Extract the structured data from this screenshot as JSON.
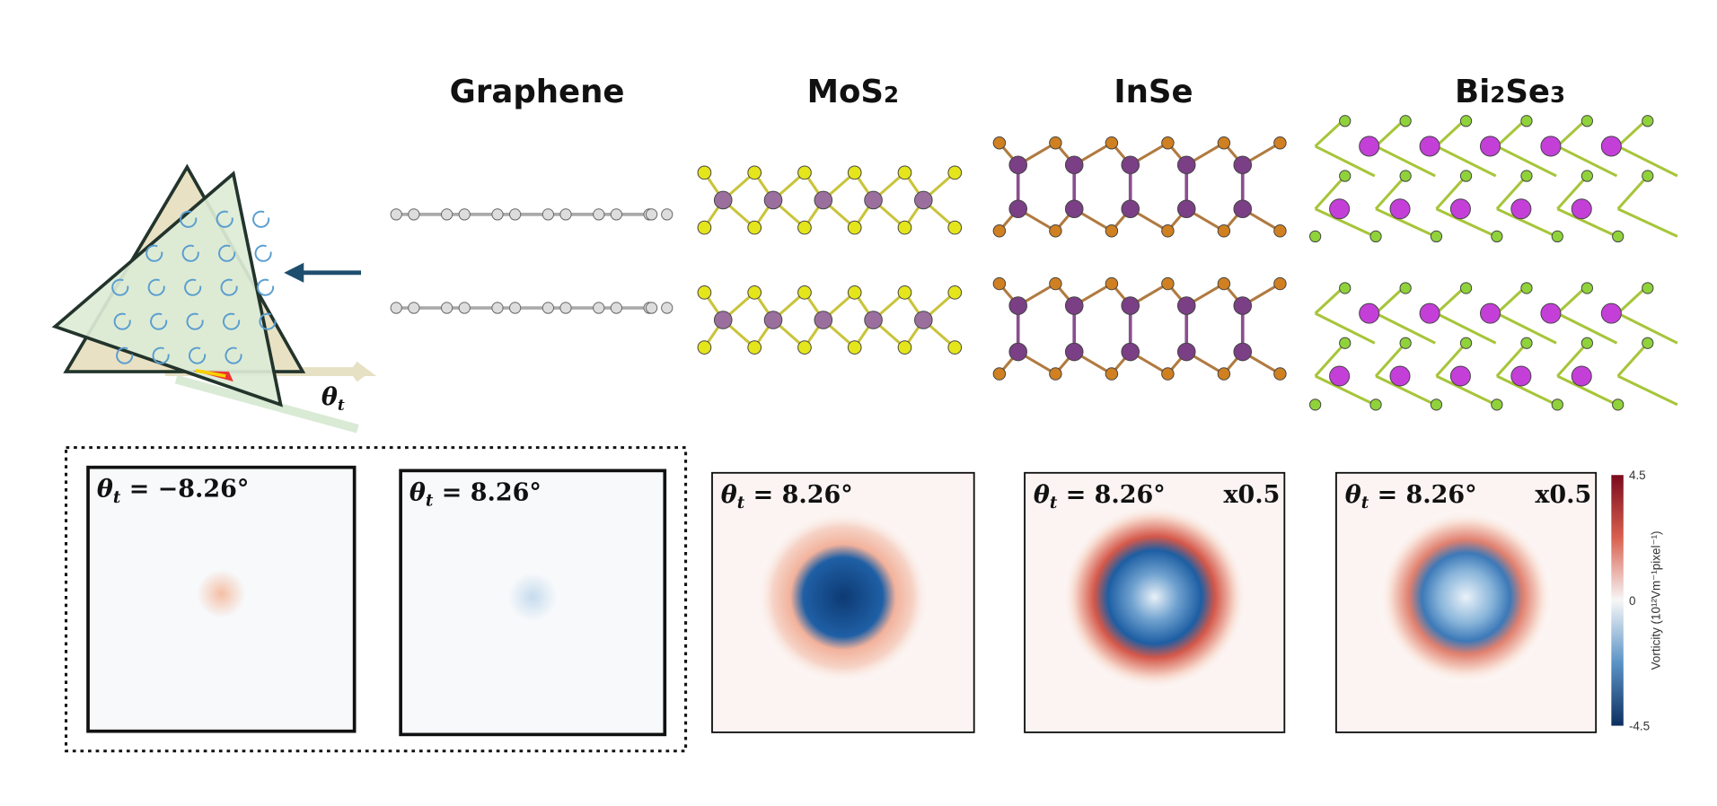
{
  "header": {
    "columns": [
      {
        "title": [
          "Graphene"
        ]
      },
      {
        "title": [
          "MoS",
          "2"
        ]
      },
      {
        "title": [
          "InSe"
        ]
      },
      {
        "title": [
          "Bi",
          "2",
          "Se",
          "3"
        ]
      }
    ]
  },
  "diagram": {
    "angle": {
      "symbol": "θ",
      "sub": "t"
    }
  },
  "panels": [
    {
      "symbol": "θ",
      "sub": "t",
      "angle": " = −8.26°"
    },
    {
      "symbol": "θ",
      "sub": "t",
      "angle": " = 8.26°"
    },
    {
      "symbol": "θ",
      "sub": "t",
      "angle": " = 8.26°"
    },
    {
      "symbol": "θ",
      "sub": "t",
      "angle": " = 8.26°",
      "scale": "x0.5"
    },
    {
      "symbol": "θ",
      "sub": "t",
      "angle": " = 8.26°",
      "scale": "x0.5"
    }
  ],
  "colorbar": {
    "max": "4.5",
    "mid": "0",
    "min": "-4.5",
    "label": "Vorticity (10¹²Vm⁻¹pixel⁻¹)"
  }
}
